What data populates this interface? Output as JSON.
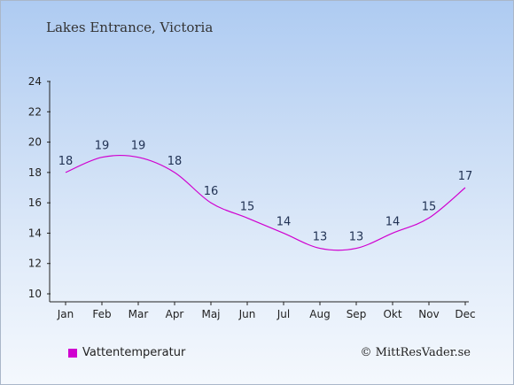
{
  "chart_data": {
    "type": "line",
    "title": "Lakes Entrance, Victoria",
    "categories": [
      "Jan",
      "Feb",
      "Mar",
      "Apr",
      "Maj",
      "Jun",
      "Jul",
      "Aug",
      "Sep",
      "Okt",
      "Nov",
      "Dec"
    ],
    "series": [
      {
        "name": "Vattentemperatur",
        "values": [
          18,
          19,
          19,
          18,
          16,
          15,
          14,
          13,
          13,
          14,
          15,
          17
        ],
        "color": "#d000d0"
      }
    ],
    "ylim": [
      10,
      24
    ],
    "yticks": [
      10,
      12,
      14,
      16,
      18,
      20,
      22,
      24
    ],
    "grid": false,
    "legend": "bottom-left"
  },
  "credit": "© MittResVader.se"
}
